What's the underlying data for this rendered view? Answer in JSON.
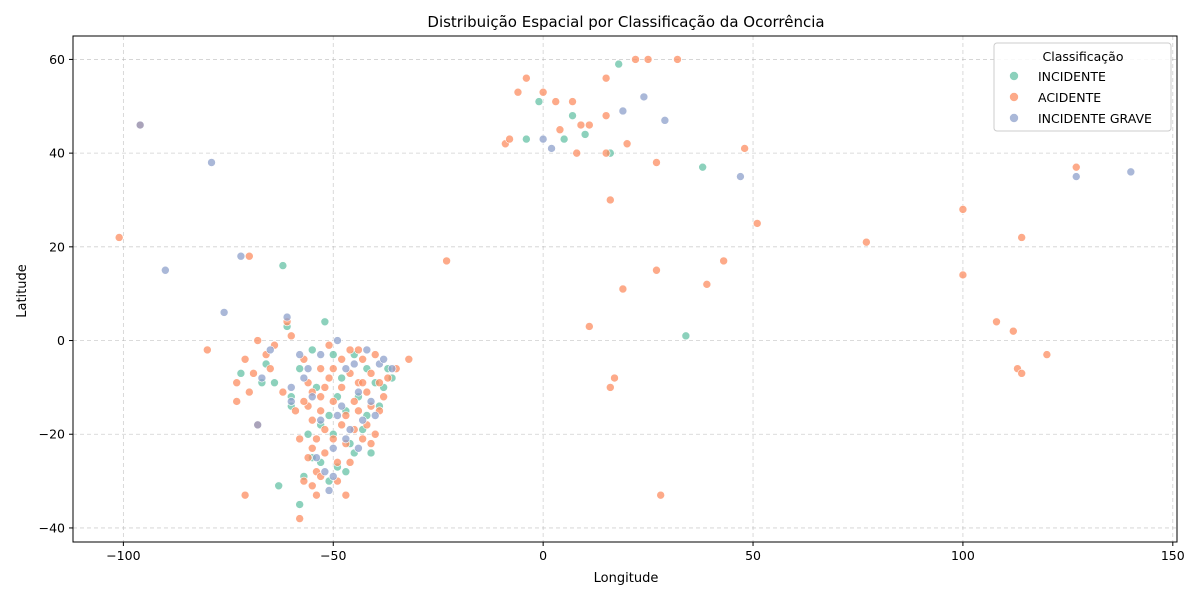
{
  "chart_data": {
    "type": "scatter",
    "title": "Distribuição Espacial por Classificação da Ocorrência",
    "xlabel": "Longitude",
    "ylabel": "Latitude",
    "xlim": [
      -112,
      151
    ],
    "ylim": [
      -43,
      65
    ],
    "xticks": [
      -100,
      -50,
      0,
      50,
      100,
      150
    ],
    "yticks": [
      -40,
      -20,
      0,
      20,
      40,
      60
    ],
    "xtick_labels": [
      "−100",
      "−50",
      "0",
      "50",
      "100",
      "150"
    ],
    "ytick_labels": [
      "−40",
      "−20",
      "0",
      "20",
      "40",
      "60"
    ],
    "grid": true,
    "legend": {
      "title": "Classificação",
      "placement": "top-right",
      "entries": [
        {
          "label": "INCIDENTE",
          "color": "#66c2a5"
        },
        {
          "label": "ACIDENTE",
          "color": "#fc8d62"
        },
        {
          "label": "INCIDENTE GRAVE",
          "color": "#8da0cb"
        }
      ]
    },
    "series": [
      {
        "name": "INCIDENTE",
        "color": "#66c2a5",
        "points": [
          [
            -72,
            -7
          ],
          [
            -66,
            -5
          ],
          [
            -64,
            -9
          ],
          [
            -61,
            3
          ],
          [
            -60,
            -12
          ],
          [
            -58,
            -6
          ],
          [
            -55,
            -2
          ],
          [
            -54,
            -10
          ],
          [
            -52,
            4
          ],
          [
            -51,
            -16
          ],
          [
            -50,
            -20
          ],
          [
            -49,
            -27
          ],
          [
            -48,
            -8
          ],
          [
            -47,
            -15
          ],
          [
            -46,
            -22
          ],
          [
            -45,
            -3
          ],
          [
            -44,
            -12
          ],
          [
            -43,
            -19
          ],
          [
            -42,
            -6
          ],
          [
            -41,
            -24
          ],
          [
            -40,
            -9
          ],
          [
            -39,
            -14
          ],
          [
            -38,
            -10
          ],
          [
            -37,
            -6
          ],
          [
            -36,
            -8
          ],
          [
            -56,
            -20
          ],
          [
            -53,
            -26
          ],
          [
            -51,
            -30
          ],
          [
            -63,
            -31
          ],
          [
            -58,
            -35
          ],
          [
            -57,
            -29
          ],
          [
            -67,
            -9
          ],
          [
            -62,
            16
          ],
          [
            -1,
            51
          ],
          [
            -4,
            43
          ],
          [
            5,
            43
          ],
          [
            7,
            48
          ],
          [
            10,
            44
          ],
          [
            16,
            40
          ],
          [
            18,
            59
          ],
          [
            34,
            1
          ],
          [
            38,
            37
          ],
          [
            -47,
            -28
          ],
          [
            -49,
            -12
          ],
          [
            -53,
            -18
          ],
          [
            -45,
            -24
          ],
          [
            -42,
            -16
          ],
          [
            -60,
            -14
          ],
          [
            -55,
            -25
          ],
          [
            -50,
            -3
          ]
        ]
      },
      {
        "name": "ACIDENTE",
        "color": "#fc8d62",
        "points": [
          [
            -101,
            22
          ],
          [
            -96,
            46
          ],
          [
            -80,
            -2
          ],
          [
            -73,
            -9
          ],
          [
            -73,
            -13
          ],
          [
            -71,
            -4
          ],
          [
            -70,
            18
          ],
          [
            -70,
            -11
          ],
          [
            -69,
            -7
          ],
          [
            -68,
            0
          ],
          [
            -66,
            -3
          ],
          [
            -65,
            -6
          ],
          [
            -64,
            -1
          ],
          [
            -62,
            -11
          ],
          [
            -61,
            4
          ],
          [
            -60,
            1
          ],
          [
            -59,
            -15
          ],
          [
            -58,
            -21
          ],
          [
            -57,
            -4
          ],
          [
            -56,
            -9
          ],
          [
            -56,
            -14
          ],
          [
            -55,
            -17
          ],
          [
            -55,
            -23
          ],
          [
            -54,
            -28
          ],
          [
            -54,
            -33
          ],
          [
            -53,
            -6
          ],
          [
            -53,
            -12
          ],
          [
            -52,
            -19
          ],
          [
            -52,
            -24
          ],
          [
            -51,
            -1
          ],
          [
            -51,
            -8
          ],
          [
            -50,
            -13
          ],
          [
            -50,
            -21
          ],
          [
            -49,
            -26
          ],
          [
            -49,
            -30
          ],
          [
            -48,
            -4
          ],
          [
            -48,
            -10
          ],
          [
            -47,
            -16
          ],
          [
            -47,
            -22
          ],
          [
            -46,
            -2
          ],
          [
            -46,
            -7
          ],
          [
            -45,
            -13
          ],
          [
            -45,
            -19
          ],
          [
            -44,
            -9
          ],
          [
            -44,
            -15
          ],
          [
            -43,
            -4
          ],
          [
            -43,
            -21
          ],
          [
            -42,
            -11
          ],
          [
            -42,
            -18
          ],
          [
            -41,
            -7
          ],
          [
            -41,
            -14
          ],
          [
            -40,
            -3
          ],
          [
            -40,
            -20
          ],
          [
            -39,
            -9
          ],
          [
            -39,
            -15
          ],
          [
            -38,
            -12
          ],
          [
            -37,
            -8
          ],
          [
            -35,
            -6
          ],
          [
            -32,
            -4
          ],
          [
            -58,
            -38
          ],
          [
            -57,
            -30
          ],
          [
            -56,
            -25
          ],
          [
            -55,
            -31
          ],
          [
            -54,
            -21
          ],
          [
            -53,
            -29
          ],
          [
            -71,
            -33
          ],
          [
            -68,
            -18
          ],
          [
            -23,
            17
          ],
          [
            -9,
            42
          ],
          [
            -8,
            43
          ],
          [
            -4,
            56
          ],
          [
            -6,
            53
          ],
          [
            0,
            53
          ],
          [
            3,
            51
          ],
          [
            4,
            45
          ],
          [
            7,
            51
          ],
          [
            8,
            40
          ],
          [
            9,
            46
          ],
          [
            11,
            46
          ],
          [
            11,
            3
          ],
          [
            15,
            48
          ],
          [
            15,
            40
          ],
          [
            15,
            56
          ],
          [
            16,
            30
          ],
          [
            17,
            -8
          ],
          [
            16,
            -10
          ],
          [
            19,
            11
          ],
          [
            20,
            42
          ],
          [
            22,
            60
          ],
          [
            25,
            60
          ],
          [
            27,
            38
          ],
          [
            28,
            -33
          ],
          [
            32,
            60
          ],
          [
            39,
            12
          ],
          [
            43,
            17
          ],
          [
            48,
            41
          ],
          [
            51,
            25
          ],
          [
            77,
            21
          ],
          [
            100,
            28
          ],
          [
            100,
            14
          ],
          [
            108,
            4
          ],
          [
            112,
            2
          ],
          [
            113,
            -6
          ],
          [
            114,
            -7
          ],
          [
            114,
            22
          ],
          [
            120,
            -3
          ],
          [
            127,
            37
          ],
          [
            27,
            15
          ],
          [
            -47,
            -33
          ],
          [
            -44,
            -2
          ],
          [
            -52,
            -10
          ],
          [
            -48,
            -18
          ],
          [
            -46,
            -26
          ],
          [
            -50,
            -6
          ],
          [
            -57,
            -13
          ],
          [
            -53,
            -15
          ],
          [
            -41,
            -22
          ],
          [
            -43,
            -9
          ],
          [
            -55,
            -11
          ]
        ]
      },
      {
        "name": "INCIDENTE GRAVE",
        "color": "#8da0cb",
        "points": [
          [
            -96,
            46
          ],
          [
            -90,
            15
          ],
          [
            -79,
            38
          ],
          [
            -76,
            6
          ],
          [
            -72,
            18
          ],
          [
            -68,
            -18
          ],
          [
            -67,
            -8
          ],
          [
            -65,
            -2
          ],
          [
            -61,
            5
          ],
          [
            -60,
            -10
          ],
          [
            -58,
            -3
          ],
          [
            -56,
            -6
          ],
          [
            -55,
            -12
          ],
          [
            -53,
            -17
          ],
          [
            -52,
            -28
          ],
          [
            -51,
            -32
          ],
          [
            -50,
            -23
          ],
          [
            -49,
            0
          ],
          [
            -48,
            -14
          ],
          [
            -47,
            -6
          ],
          [
            -46,
            -19
          ],
          [
            -45,
            -5
          ],
          [
            -44,
            -11
          ],
          [
            -43,
            -17
          ],
          [
            -42,
            -2
          ],
          [
            -41,
            -13
          ],
          [
            -40,
            -16
          ],
          [
            -39,
            -5
          ],
          [
            -38,
            -4
          ],
          [
            -36,
            -6
          ],
          [
            -60,
            -13
          ],
          [
            -57,
            -8
          ],
          [
            -54,
            -25
          ],
          [
            -50,
            -29
          ],
          [
            0,
            43
          ],
          [
            2,
            41
          ],
          [
            19,
            49
          ],
          [
            24,
            52
          ],
          [
            29,
            47
          ],
          [
            47,
            35
          ],
          [
            127,
            35
          ],
          [
            140,
            36
          ],
          [
            -47,
            -21
          ],
          [
            -44,
            -23
          ],
          [
            -49,
            -16
          ],
          [
            -53,
            -3
          ]
        ]
      }
    ]
  }
}
